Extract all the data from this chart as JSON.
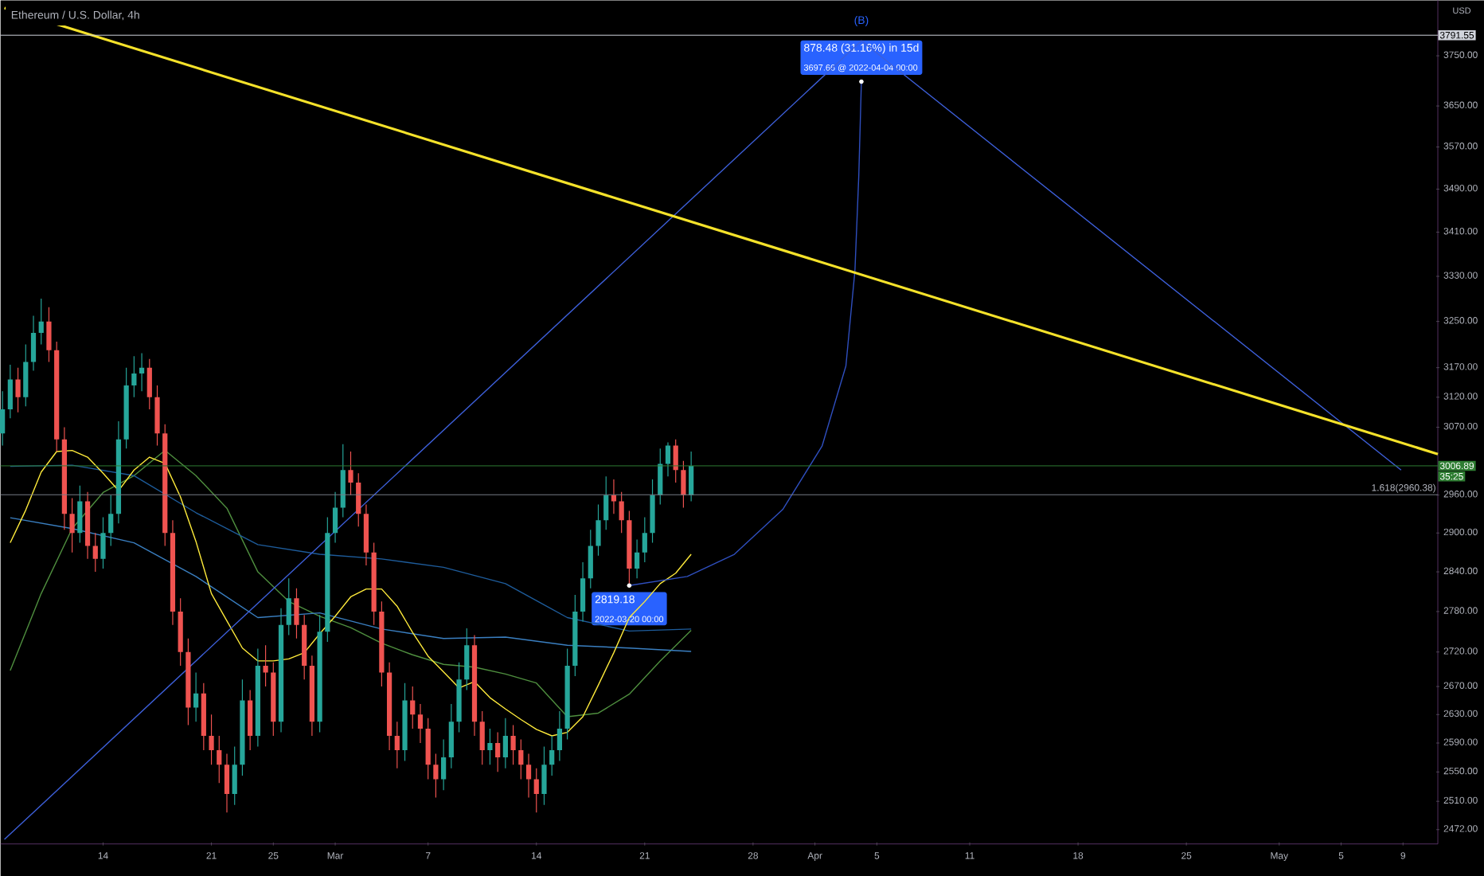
{
  "chart_data": {
    "type": "candlestick",
    "title": "Ethereum / U.S. Dollar, 4h",
    "ylabel": "USD",
    "log": "y",
    "xlim": [
      "2022-02-07T09:00",
      "2022-05-11T06:00"
    ],
    "ylim": [
      2453,
      3864
    ],
    "xticks": [
      {
        "value": "2022-02-14",
        "label": "14"
      },
      {
        "value": "2022-02-21",
        "label": "21"
      },
      {
        "value": "2022-02-25",
        "label": "25"
      },
      {
        "value": "2022-03-01",
        "label": "Mar"
      },
      {
        "value": "2022-03-07",
        "label": "7"
      },
      {
        "value": "2022-03-14",
        "label": "14"
      },
      {
        "value": "2022-03-21",
        "label": "21"
      },
      {
        "value": "2022-03-28",
        "label": "28"
      },
      {
        "value": "2022-04-01",
        "label": "Apr"
      },
      {
        "value": "2022-04-05",
        "label": "5"
      },
      {
        "value": "2022-04-11",
        "label": "11"
      },
      {
        "value": "2022-04-18",
        "label": "18"
      },
      {
        "value": "2022-04-25",
        "label": "25"
      },
      {
        "value": "2022-05-01",
        "label": "May"
      },
      {
        "value": "2022-05-05",
        "label": "5"
      },
      {
        "value": "2022-05-09",
        "label": "9"
      }
    ],
    "yticks": [
      {
        "value": 3750,
        "label": "3750.00"
      },
      {
        "value": 3650,
        "label": "3650.00"
      },
      {
        "value": 3570,
        "label": "3570.00"
      },
      {
        "value": 3490,
        "label": "3490.00"
      },
      {
        "value": 3410,
        "label": "3410.00"
      },
      {
        "value": 3330,
        "label": "3330.00"
      },
      {
        "value": 3250,
        "label": "3250.00"
      },
      {
        "value": 3170,
        "label": "3170.00"
      },
      {
        "value": 3120,
        "label": "3120.00"
      },
      {
        "value": 3070,
        "label": "3070.00"
      },
      {
        "value": 2960,
        "label": "2960.00"
      },
      {
        "value": 2900,
        "label": "2900.00"
      },
      {
        "value": 2840,
        "label": "2840.00"
      },
      {
        "value": 2780,
        "label": "2780.00"
      },
      {
        "value": 2720,
        "label": "2720.00"
      },
      {
        "value": 2670,
        "label": "2670.00"
      },
      {
        "value": 2630,
        "label": "2630.00"
      },
      {
        "value": 2590,
        "label": "2590.00"
      },
      {
        "value": 2550,
        "label": "2550.00"
      },
      {
        "value": 2510,
        "label": "2510.00"
      },
      {
        "value": 2472,
        "label": "2472.00"
      }
    ],
    "x": [
      "2022-02-07T12:00",
      "2022-02-08T00:00",
      "2022-02-08T12:00",
      "2022-02-09T00:00",
      "2022-02-09T12:00",
      "2022-02-10T00:00",
      "2022-02-10T12:00",
      "2022-02-11T00:00",
      "2022-02-11T12:00",
      "2022-02-12T00:00",
      "2022-02-12T12:00",
      "2022-02-13T00:00",
      "2022-02-13T12:00",
      "2022-02-14T00:00",
      "2022-02-14T12:00",
      "2022-02-15T00:00",
      "2022-02-15T12:00",
      "2022-02-16T00:00",
      "2022-02-16T12:00",
      "2022-02-17T00:00",
      "2022-02-17T12:00",
      "2022-02-18T00:00",
      "2022-02-18T12:00",
      "2022-02-19T00:00",
      "2022-02-19T12:00",
      "2022-02-20T00:00",
      "2022-02-20T12:00",
      "2022-02-21T00:00",
      "2022-02-21T12:00",
      "2022-02-22T00:00",
      "2022-02-22T12:00",
      "2022-02-23T00:00",
      "2022-02-23T12:00",
      "2022-02-24T00:00",
      "2022-02-24T12:00",
      "2022-02-25T00:00",
      "2022-02-25T12:00",
      "2022-02-26T00:00",
      "2022-02-26T12:00",
      "2022-02-27T00:00",
      "2022-02-27T12:00",
      "2022-02-28T00:00",
      "2022-02-28T12:00",
      "2022-03-01T00:00",
      "2022-03-01T12:00",
      "2022-03-02T00:00",
      "2022-03-02T12:00",
      "2022-03-03T00:00",
      "2022-03-03T12:00",
      "2022-03-04T00:00",
      "2022-03-04T12:00",
      "2022-03-05T00:00",
      "2022-03-05T12:00",
      "2022-03-06T00:00",
      "2022-03-06T12:00",
      "2022-03-07T00:00",
      "2022-03-07T12:00",
      "2022-03-08T00:00",
      "2022-03-08T12:00",
      "2022-03-09T00:00",
      "2022-03-09T12:00",
      "2022-03-10T00:00",
      "2022-03-10T12:00",
      "2022-03-11T00:00",
      "2022-03-11T12:00",
      "2022-03-12T00:00",
      "2022-03-12T12:00",
      "2022-03-13T00:00",
      "2022-03-13T12:00",
      "2022-03-14T00:00",
      "2022-03-14T12:00",
      "2022-03-15T00:00",
      "2022-03-15T12:00",
      "2022-03-16T00:00",
      "2022-03-16T12:00",
      "2022-03-17T00:00",
      "2022-03-17T12:00",
      "2022-03-18T00:00",
      "2022-03-18T12:00",
      "2022-03-19T00:00",
      "2022-03-19T12:00",
      "2022-03-20T00:00",
      "2022-03-20T12:00",
      "2022-03-21T00:00",
      "2022-03-21T12:00",
      "2022-03-22T00:00",
      "2022-03-22T12:00",
      "2022-03-23T00:00",
      "2022-03-23T12:00",
      "2022-03-24T00:00"
    ],
    "ohlc": [
      [
        3060,
        3130,
        3040,
        3100
      ],
      [
        3100,
        3175,
        3085,
        3150
      ],
      [
        3150,
        3170,
        3095,
        3120
      ],
      [
        3120,
        3210,
        3105,
        3180
      ],
      [
        3180,
        3260,
        3165,
        3230
      ],
      [
        3230,
        3290,
        3210,
        3250
      ],
      [
        3250,
        3275,
        3180,
        3200
      ],
      [
        3200,
        3215,
        3030,
        3050
      ],
      [
        3050,
        3070,
        2905,
        2930
      ],
      [
        2930,
        2955,
        2870,
        2900
      ],
      [
        2900,
        2975,
        2885,
        2950
      ],
      [
        2950,
        2965,
        2860,
        2880
      ],
      [
        2880,
        2900,
        2840,
        2860
      ],
      [
        2860,
        2925,
        2845,
        2900
      ],
      [
        2900,
        2960,
        2880,
        2930
      ],
      [
        2930,
        3080,
        2915,
        3050
      ],
      [
        3050,
        3170,
        3035,
        3140
      ],
      [
        3140,
        3190,
        3120,
        3160
      ],
      [
        3160,
        3195,
        3130,
        3170
      ],
      [
        3170,
        3185,
        3100,
        3120
      ],
      [
        3120,
        3140,
        3040,
        3060
      ],
      [
        3060,
        3075,
        2880,
        2900
      ],
      [
        2900,
        2920,
        2760,
        2780
      ],
      [
        2780,
        2800,
        2700,
        2720
      ],
      [
        2720,
        2740,
        2615,
        2640
      ],
      [
        2640,
        2690,
        2620,
        2660
      ],
      [
        2660,
        2675,
        2580,
        2600
      ],
      [
        2600,
        2630,
        2560,
        2580
      ],
      [
        2580,
        2600,
        2535,
        2560
      ],
      [
        2560,
        2575,
        2495,
        2520
      ],
      [
        2520,
        2585,
        2505,
        2560
      ],
      [
        2560,
        2680,
        2545,
        2650
      ],
      [
        2650,
        2665,
        2580,
        2600
      ],
      [
        2600,
        2725,
        2585,
        2700
      ],
      [
        2700,
        2730,
        2670,
        2690
      ],
      [
        2690,
        2705,
        2600,
        2620
      ],
      [
        2620,
        2785,
        2605,
        2760
      ],
      [
        2760,
        2830,
        2745,
        2800
      ],
      [
        2800,
        2815,
        2740,
        2760
      ],
      [
        2760,
        2775,
        2680,
        2700
      ],
      [
        2700,
        2715,
        2600,
        2620
      ],
      [
        2620,
        2775,
        2605,
        2750
      ],
      [
        2750,
        2925,
        2735,
        2900
      ],
      [
        2900,
        2965,
        2885,
        2940
      ],
      [
        2940,
        3042,
        2925,
        3000
      ],
      [
        3000,
        3030,
        2960,
        2980
      ],
      [
        2980,
        2995,
        2910,
        2930
      ],
      [
        2930,
        2945,
        2850,
        2870
      ],
      [
        2870,
        2885,
        2760,
        2780
      ],
      [
        2780,
        2795,
        2670,
        2690
      ],
      [
        2690,
        2705,
        2580,
        2600
      ],
      [
        2600,
        2620,
        2555,
        2580
      ],
      [
        2580,
        2675,
        2565,
        2650
      ],
      [
        2650,
        2670,
        2610,
        2630
      ],
      [
        2630,
        2645,
        2590,
        2610
      ],
      [
        2610,
        2625,
        2540,
        2560
      ],
      [
        2560,
        2575,
        2515,
        2540
      ],
      [
        2540,
        2595,
        2525,
        2570
      ],
      [
        2570,
        2645,
        2555,
        2620
      ],
      [
        2620,
        2705,
        2605,
        2680
      ],
      [
        2680,
        2755,
        2665,
        2730
      ],
      [
        2730,
        2745,
        2600,
        2620
      ],
      [
        2620,
        2635,
        2560,
        2580
      ],
      [
        2580,
        2610,
        2560,
        2590
      ],
      [
        2590,
        2605,
        2550,
        2570
      ],
      [
        2570,
        2625,
        2555,
        2600
      ],
      [
        2600,
        2615,
        2560,
        2580
      ],
      [
        2580,
        2595,
        2540,
        2560
      ],
      [
        2560,
        2575,
        2515,
        2540
      ],
      [
        2540,
        2555,
        2495,
        2520
      ],
      [
        2520,
        2585,
        2505,
        2560
      ],
      [
        2560,
        2600,
        2545,
        2580
      ],
      [
        2580,
        2635,
        2565,
        2610
      ],
      [
        2610,
        2725,
        2595,
        2700
      ],
      [
        2700,
        2805,
        2685,
        2780
      ],
      [
        2780,
        2855,
        2765,
        2830
      ],
      [
        2830,
        2905,
        2815,
        2880
      ],
      [
        2880,
        2945,
        2865,
        2920
      ],
      [
        2920,
        2990,
        2905,
        2960
      ],
      [
        2960,
        2985,
        2930,
        2950
      ],
      [
        2950,
        2965,
        2900,
        2920
      ],
      [
        2920,
        2935,
        2819.18,
        2845
      ],
      [
        2845,
        2890,
        2830,
        2870
      ],
      [
        2870,
        2925,
        2855,
        2900
      ],
      [
        2900,
        2985,
        2885,
        2960
      ],
      [
        2960,
        3035,
        2945,
        3010
      ],
      [
        3010,
        3045,
        2990,
        3040
      ],
      [
        3040,
        3050,
        2980,
        3000
      ],
      [
        3000,
        3015,
        2940,
        2960
      ],
      [
        2960,
        3030,
        2950,
        3006.89
      ]
    ],
    "series": [
      {
        "type": "line",
        "color": "#4f8f3f",
        "x": [
          "2022-02-08",
          "2022-02-10",
          "2022-02-12",
          "2022-02-14",
          "2022-02-16",
          "2022-02-18",
          "2022-02-20",
          "2022-02-22",
          "2022-02-24",
          "2022-02-26",
          "2022-02-28",
          "2022-03-02",
          "2022-03-04",
          "2022-03-06",
          "2022-03-08",
          "2022-03-10",
          "2022-03-12",
          "2022-03-14",
          "2022-03-16",
          "2022-03-18",
          "2022-03-20",
          "2022-03-22",
          "2022-03-24"
        ],
        "values": [
          2693,
          2807,
          2907,
          2964,
          2991,
          3032,
          2991,
          2939,
          2840,
          2795,
          2773,
          2756,
          2733,
          2716,
          2702,
          2698,
          2688,
          2675,
          2627,
          2632,
          2659,
          2707,
          2752
        ]
      },
      {
        "type": "line",
        "color": "#1e5c9b",
        "x": [
          "2022-02-08",
          "2022-02-12",
          "2022-02-16",
          "2022-02-20",
          "2022-02-24",
          "2022-02-28",
          "2022-03-04",
          "2022-03-08",
          "2022-03-12",
          "2022-03-16",
          "2022-03-20",
          "2022-03-24"
        ],
        "values": [
          3006,
          3008,
          2991,
          2932,
          2882,
          2867,
          2860,
          2847,
          2822,
          2771,
          2751,
          2754
        ]
      },
      {
        "type": "line",
        "color": "#3a7fc1",
        "x": [
          "2022-02-08",
          "2022-02-12",
          "2022-02-16",
          "2022-02-20",
          "2022-02-24",
          "2022-02-28",
          "2022-03-04",
          "2022-03-08",
          "2022-03-12",
          "2022-03-16",
          "2022-03-20",
          "2022-03-24"
        ],
        "values": [
          2924,
          2907,
          2885,
          2833,
          2771,
          2778,
          2754,
          2740,
          2742,
          2730,
          2726,
          2721
        ]
      },
      {
        "type": "line",
        "color": "#ffeb3b",
        "x": [
          "2022-02-08",
          "2022-02-09",
          "2022-02-10",
          "2022-02-11",
          "2022-02-12",
          "2022-02-13",
          "2022-02-14",
          "2022-02-15",
          "2022-02-16",
          "2022-02-17",
          "2022-02-18",
          "2022-02-19",
          "2022-02-20",
          "2022-02-21",
          "2022-02-22",
          "2022-02-23",
          "2022-02-24",
          "2022-02-25",
          "2022-02-26",
          "2022-02-27",
          "2022-02-28",
          "2022-03-01",
          "2022-03-02",
          "2022-03-03",
          "2022-03-04",
          "2022-03-05",
          "2022-03-06",
          "2022-03-07",
          "2022-03-08",
          "2022-03-09",
          "2022-03-10",
          "2022-03-11",
          "2022-03-12",
          "2022-03-13",
          "2022-03-14",
          "2022-03-15",
          "2022-03-16",
          "2022-03-17",
          "2022-03-18",
          "2022-03-19",
          "2022-03-20",
          "2022-03-21",
          "2022-03-22",
          "2022-03-23",
          "2022-03-24"
        ],
        "values": [
          2885,
          2936,
          2997,
          3030,
          3032,
          3021,
          2995,
          2967,
          3000,
          3021,
          3011,
          2957,
          2887,
          2807,
          2766,
          2726,
          2707,
          2707,
          2710,
          2719,
          2747,
          2773,
          2802,
          2814,
          2814,
          2788,
          2749,
          2714,
          2691,
          2668,
          2677,
          2654,
          2638,
          2623,
          2609,
          2600,
          2605,
          2627,
          2672,
          2719,
          2771,
          2795,
          2822,
          2838,
          2867
        ]
      },
      {
        "type": "line",
        "color": "#3d5fd9",
        "x": [
          "2022-02-07T15:00",
          "2022-04-04T00:00",
          "2022-05-08T21:00"
        ],
        "values": [
          2459,
          3780,
          3000
        ]
      },
      {
        "type": "line",
        "color": "#2f4fbf",
        "x": [
          "2022-03-20T00:00",
          "2022-03-23T18:00",
          "2022-03-26T19:00",
          "2022-03-29T22:00",
          "2022-04-01T11:00",
          "2022-04-03T00:00",
          "2022-04-03T14:00",
          "2022-04-03T20:00",
          "2022-04-04T00:00"
        ],
        "values": [
          2819.18,
          2833,
          2867,
          2937,
          3039,
          3173,
          3340,
          3516,
          3697.66
        ]
      },
      {
        "type": "line",
        "color": "#f5e22a",
        "x": [
          "2022-02-07T15:00",
          "2022-05-11T06:00"
        ],
        "values": [
          3848,
          3026
        ]
      }
    ],
    "ref_lines": [
      {
        "axis": "y",
        "value": 3791.55,
        "label": "3791.55",
        "color": "#d1d4dc"
      },
      {
        "axis": "y",
        "value": 2960.38,
        "label": "1.618(2960.38)"
      },
      {
        "axis": "y",
        "value": 3006.89,
        "label": "3006.89",
        "color": "#2e7d32"
      }
    ],
    "annotations": [
      "35:25",
      {
        "text": "2819.18",
        "x": "2022-03-20T00:00",
        "y": 2819.18
      },
      "2022-03-20 00:00",
      {
        "text": "878.48 (31.16%) in 15d",
        "x": "2022-04-04T00:00",
        "y": 3697.66
      },
      "3697.66 @ 2022-04-04  00:00",
      {
        "text": "(B)",
        "x": "2022-04-04T00:00",
        "y": 3780
      }
    ]
  }
}
